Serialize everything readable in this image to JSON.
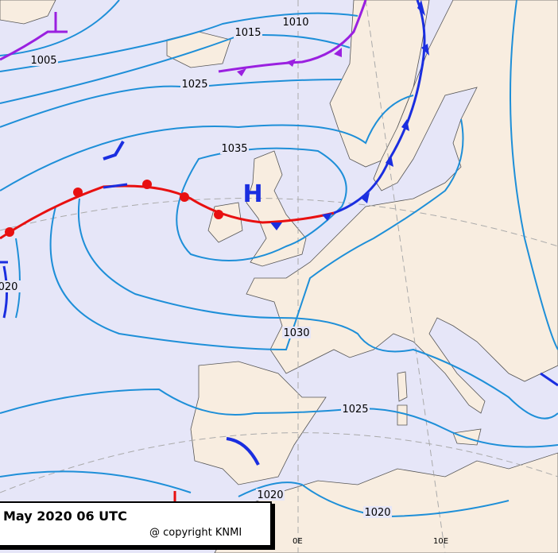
{
  "caption": {
    "title": "May 2020 06 UTC",
    "copyright": "@ copyright KNMI"
  },
  "longitude_labels": [
    "0E",
    "10E"
  ],
  "pressure_centers": [
    "H"
  ],
  "isobar_labels": [
    "1010",
    "1015",
    "1005",
    "1025",
    "1035",
    "020",
    "1030",
    "1025",
    "1020",
    "1020"
  ]
}
